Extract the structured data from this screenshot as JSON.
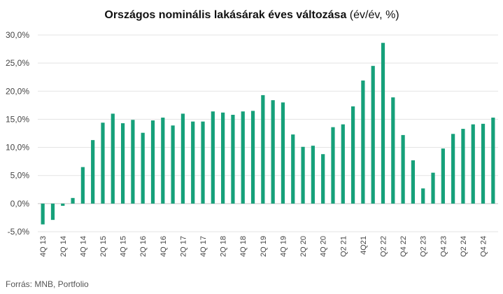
{
  "chart_data": {
    "type": "bar",
    "title": "Országos nominális lakásárak éves változása",
    "subtitle": "(év/év, %)",
    "source": "Forrás: MNB, Portfolio",
    "categories": [
      "4Q 13",
      null,
      "2Q 14",
      null,
      "4Q 14",
      null,
      "2Q 15",
      null,
      "4Q 15",
      null,
      "2Q 16",
      null,
      "4Q 16",
      null,
      "2Q 17",
      null,
      "4Q 17",
      null,
      "2Q 18",
      null,
      "4Q 18",
      null,
      "2Q 19",
      null,
      "4Q 19",
      null,
      "2Q 20",
      null,
      "4Q 20",
      null,
      "Q2 21",
      null,
      "4Q21",
      null,
      "Q2 22",
      null,
      "Q4 22",
      null,
      "Q2 23",
      null,
      "Q4 23",
      null,
      "Q2 24",
      null,
      "Q4 24",
      null
    ],
    "values": [
      -3.7,
      -2.9,
      -0.4,
      1.0,
      6.5,
      11.3,
      14.4,
      16.0,
      14.3,
      14.9,
      12.6,
      14.8,
      15.3,
      13.9,
      16.0,
      14.6,
      14.6,
      16.4,
      16.2,
      15.8,
      16.4,
      16.5,
      19.3,
      18.4,
      18.0,
      12.3,
      10.1,
      10.3,
      8.8,
      13.6,
      14.1,
      17.3,
      21.9,
      24.5,
      28.6,
      18.9,
      12.2,
      7.7,
      2.7,
      5.5,
      9.8,
      12.4,
      13.3,
      14.1,
      14.2,
      15.3
    ],
    "color": "#16a07a",
    "ylim": [
      -5,
      30
    ],
    "yticks": [
      {
        "value": -5,
        "label": "-5,0%"
      },
      {
        "value": 0,
        "label": "0,0%"
      },
      {
        "value": 5,
        "label": "5,0%"
      },
      {
        "value": 10,
        "label": "10,0%"
      },
      {
        "value": 15,
        "label": "15,0%"
      },
      {
        "value": 20,
        "label": "20,0%"
      },
      {
        "value": 25,
        "label": "25,0%"
      },
      {
        "value": 30,
        "label": "30,0%"
      }
    ],
    "grid": true
  }
}
